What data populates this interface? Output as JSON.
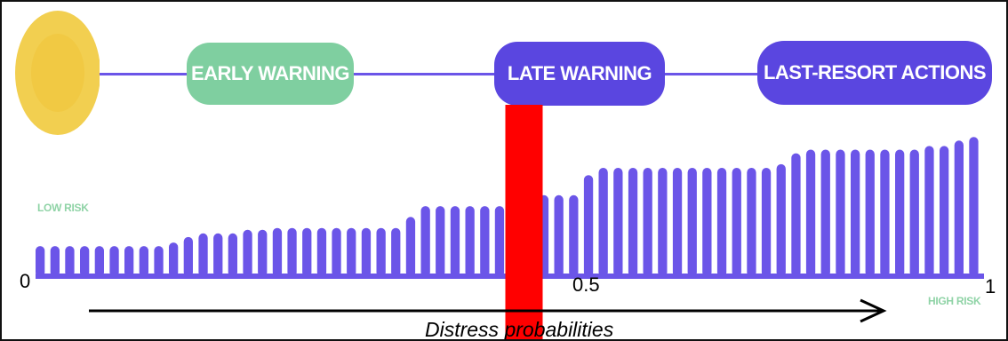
{
  "colors": {
    "timeline": "#6b55e8",
    "early_pill": "#7fcfa0",
    "warning_pill": "#5a46e0",
    "sun": "#f2cf50",
    "sun_inner": "#f0c53a",
    "bars": "#6b55e8",
    "threshold": "#ff0000",
    "risk_text": "#8fd3a6"
  },
  "stages": {
    "early": "EARLY WARNING",
    "late": "LATE WARNING",
    "last": "LAST-RESORT ACTIONS"
  },
  "risk": {
    "low": "LOW RISK",
    "high": "HIGH RISK"
  },
  "axis": {
    "min_label": "0",
    "mid_label": "0.5",
    "max_label": "1",
    "title": "Distress probabilities"
  },
  "chart_data": {
    "type": "bar",
    "bar_count": 64,
    "threshold": 0.5,
    "ylim": [
      0,
      1
    ],
    "values": [
      0.17,
      0.17,
      0.17,
      0.17,
      0.17,
      0.17,
      0.17,
      0.17,
      0.17,
      0.19,
      0.22,
      0.24,
      0.24,
      0.24,
      0.26,
      0.26,
      0.27,
      0.27,
      0.27,
      0.27,
      0.27,
      0.27,
      0.27,
      0.27,
      0.27,
      0.33,
      0.39,
      0.39,
      0.39,
      0.39,
      0.39,
      0.39,
      0.39,
      0.39,
      0.45,
      0.45,
      0.45,
      0.56,
      0.6,
      0.6,
      0.6,
      0.6,
      0.6,
      0.6,
      0.6,
      0.6,
      0.6,
      0.6,
      0.6,
      0.6,
      0.62,
      0.68,
      0.7,
      0.7,
      0.7,
      0.7,
      0.7,
      0.7,
      0.7,
      0.7,
      0.72,
      0.72,
      0.75,
      0.77
    ]
  }
}
